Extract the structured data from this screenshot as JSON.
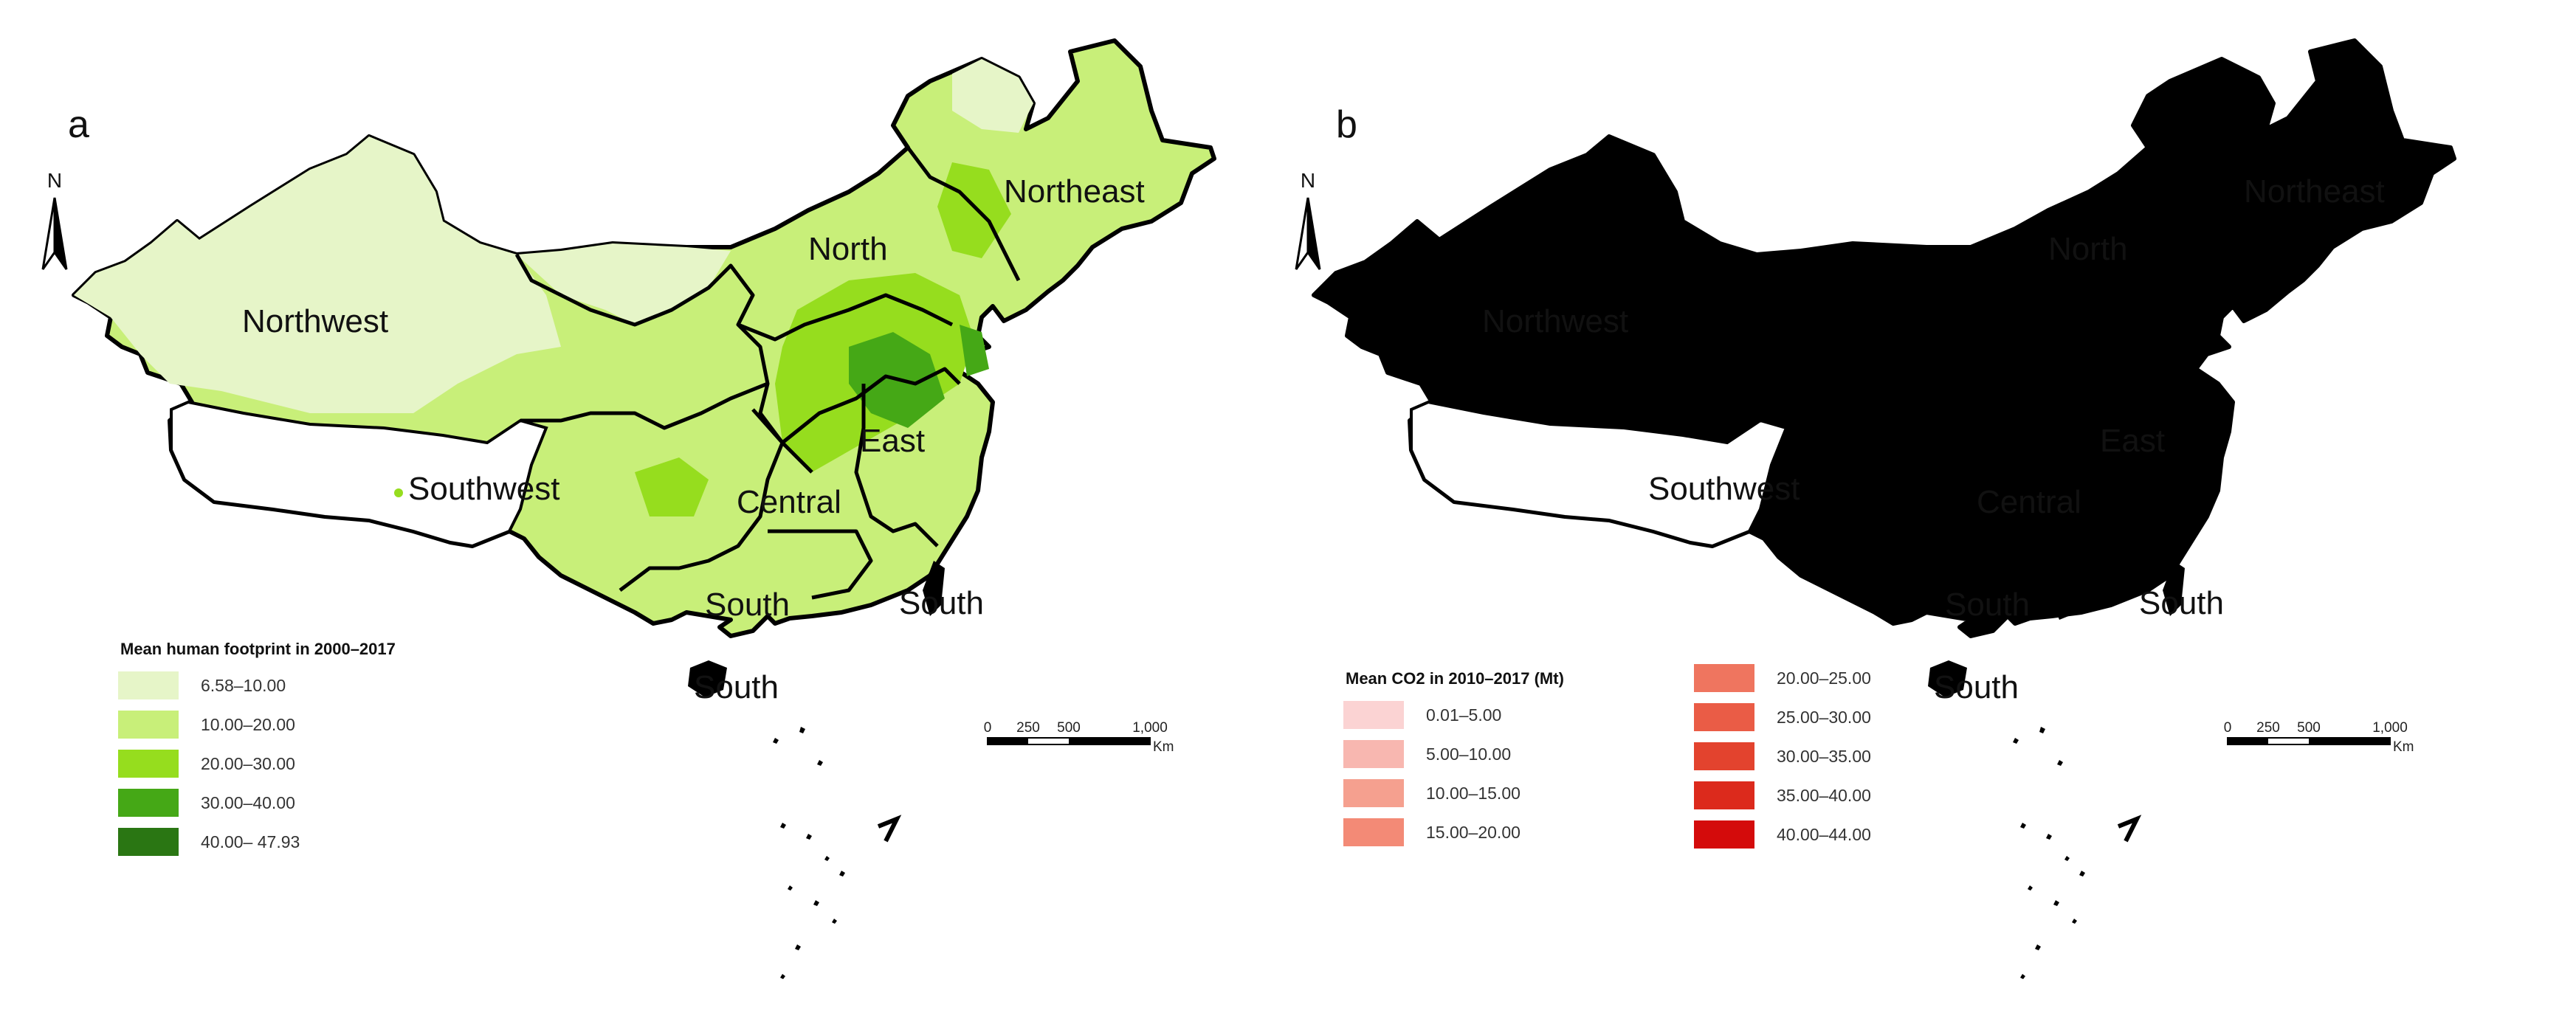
{
  "panels": [
    {
      "id": "a",
      "letter": "a",
      "north_label": "N",
      "regions": {
        "northwest": "Northwest",
        "north": "North",
        "northeast": "Northeast",
        "east": "East",
        "central": "Central",
        "southwest": "Southwest",
        "south_main": "South",
        "south_taiwan": "South",
        "south_hainan": "South"
      },
      "legend": {
        "title": "Mean human footprint in 2000–2017",
        "items": [
          {
            "label": "6.58–10.00",
            "color": "#e6f5c8"
          },
          {
            "label": "10.00–20.00",
            "color": "#c8ef79"
          },
          {
            "label": "20.00–30.00",
            "color": "#96dd1e"
          },
          {
            "label": "30.00–40.00",
            "color": "#45a816"
          },
          {
            "label": "40.00– 47.93",
            "color": "#2a7613"
          }
        ]
      },
      "scale_bar": {
        "ticks": [
          "0",
          "250",
          "500",
          "1,000"
        ],
        "unit": "Km"
      },
      "colors": {
        "base": "#c8ef79",
        "light": "#e6f5c8",
        "mid": "#96dd1e",
        "dark": "#45a816"
      }
    },
    {
      "id": "b",
      "letter": "b",
      "north_label": "N",
      "regions": {
        "northwest": "Northwest",
        "north": "North",
        "northeast": "Northeast",
        "east": "East",
        "central": "Central",
        "southwest": "Southwest",
        "south_main": "South",
        "south_taiwan": "South",
        "south_hainan": "South"
      },
      "legend": {
        "title": "Mean CO2 in 2010–2017 (Mt)",
        "items": [
          {
            "label": "0.01–5.00",
            "color": "#fbd3d3"
          },
          {
            "label": "5.00–10.00",
            "color": "#f8b7b0"
          },
          {
            "label": "10.00–15.00",
            "color": "#f5a08f"
          },
          {
            "label": "15.00–20.00",
            "color": "#f38a76"
          },
          {
            "label": "20.00–25.00",
            "color": "#ef755f"
          },
          {
            "label": "25.00–30.00",
            "color": "#ea5c46"
          },
          {
            "label": "30.00–35.00",
            "color": "#e3432e"
          },
          {
            "label": "35.00–40.00",
            "color": "#dc2a1c"
          },
          {
            "label": "40.00–44.00",
            "color": "#d40b0b"
          }
        ]
      },
      "scale_bar": {
        "ticks": [
          "0",
          "250",
          "500",
          "1,000"
        ],
        "unit": "Km"
      },
      "colors": {
        "base": "#fbd3d3",
        "light": "#fbd3d3",
        "mid": "#f5a08f",
        "dark": "#ea5c46"
      }
    }
  ]
}
